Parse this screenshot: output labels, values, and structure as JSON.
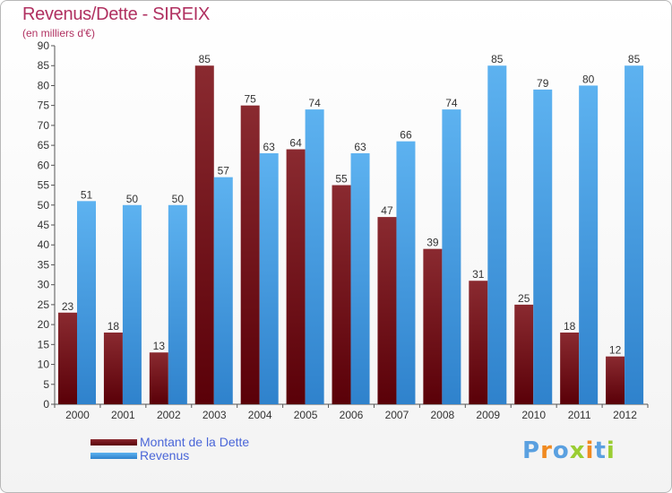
{
  "header": {
    "title": "Revenus/Dette - SIREIX",
    "subtitle": "(en milliers d'€)"
  },
  "legend": {
    "items": [
      {
        "label": "Montant de la Dette",
        "color": "#6b0f16"
      },
      {
        "label": "Revenus",
        "color": "#4aa3e8"
      }
    ]
  },
  "logo": {
    "text": "Proxiti",
    "letters": [
      "P",
      "r",
      "o",
      "x",
      "i",
      "t",
      "i"
    ],
    "colors": [
      "#5aa0e0",
      "#f08a20",
      "#5aa0e0",
      "#9acd32",
      "#f08a20",
      "#5aa0e0",
      "#9acd32"
    ]
  },
  "chart_data": {
    "type": "bar",
    "categories": [
      "2000",
      "2001",
      "2002",
      "2003",
      "2004",
      "2005",
      "2006",
      "2007",
      "2008",
      "2009",
      "2010",
      "2011",
      "2012"
    ],
    "series": [
      {
        "name": "Montant de la Dette",
        "color": "#6b0f16",
        "values": [
          23,
          18,
          13,
          85,
          75,
          64,
          55,
          47,
          39,
          31,
          25,
          18,
          12
        ]
      },
      {
        "name": "Revenus",
        "color": "#4aa3e8",
        "values": [
          51,
          50,
          50,
          57,
          63,
          74,
          63,
          66,
          74,
          85,
          79,
          80,
          85
        ]
      }
    ],
    "title": "Revenus/Dette - SIREIX",
    "subtitle": "(en milliers d'€)",
    "ylim": [
      0,
      90
    ],
    "ytick_step": 5,
    "grid": false,
    "legend_position": "bottom-left"
  }
}
